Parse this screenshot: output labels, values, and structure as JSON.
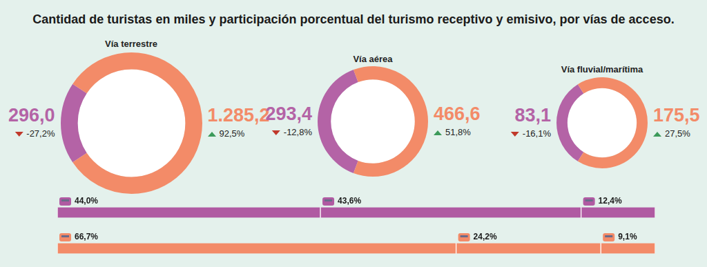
{
  "title": "Cantidad de turistas en miles y participación porcentual del turismo receptivo y emisivo, por vías de acceso.",
  "chart_data": [
    {
      "type": "doughnut",
      "title": "Vía terrestre",
      "values": [
        296.0,
        1285.2
      ],
      "value_labels": [
        "296,0",
        "1.285,2"
      ],
      "colors": [
        "#b463a6",
        "#f38b68"
      ],
      "changes": [
        -27.2,
        92.5
      ],
      "change_labels": [
        "-27,2%",
        "92,5%"
      ]
    },
    {
      "type": "doughnut",
      "title": "Vía aérea",
      "values": [
        293.4,
        466.6
      ],
      "value_labels": [
        "293,4",
        "466,6"
      ],
      "colors": [
        "#b463a6",
        "#f38b68"
      ],
      "changes": [
        -12.8,
        51.8
      ],
      "change_labels": [
        "-12,8%",
        "51,8%"
      ]
    },
    {
      "type": "doughnut",
      "title": "Vía fluvial/marítima",
      "values": [
        83.1,
        175.5
      ],
      "value_labels": [
        "83,1",
        "175,5"
      ],
      "colors": [
        "#b463a6",
        "#f38b68"
      ],
      "changes": [
        -16.1,
        27.5
      ],
      "change_labels": [
        "-16,1%",
        "27,5%"
      ]
    },
    {
      "type": "bar",
      "orientation": "horizontal",
      "stacked": true,
      "color": "#b05aa2",
      "values": [
        44.0,
        43.6,
        12.4
      ],
      "value_labels": [
        "44,0%",
        "43,6%",
        "12,4%"
      ],
      "data_labels": true,
      "xlim": [
        0,
        100
      ],
      "tick_labels": false,
      "grid": false
    },
    {
      "type": "bar",
      "orientation": "horizontal",
      "stacked": true,
      "color": "#f38b68",
      "values": [
        66.7,
        24.2,
        9.1
      ],
      "value_labels": [
        "66,7%",
        "24,2%",
        "9,1%"
      ],
      "data_labels": true,
      "xlim": [
        0,
        100
      ],
      "tick_labels": false,
      "grid": false
    }
  ]
}
